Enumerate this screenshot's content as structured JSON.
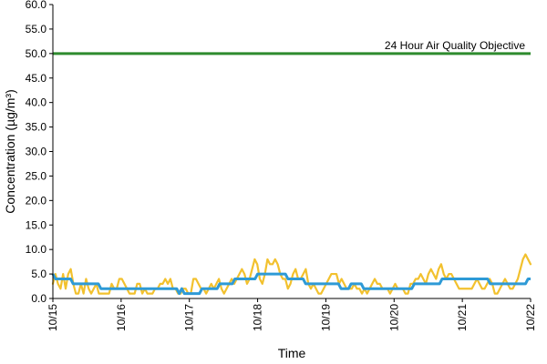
{
  "chart_data": {
    "type": "line",
    "xlabel": "Time",
    "ylabel": "Concentration (µg/m³)",
    "x_tick_labels": [
      "10/15",
      "10/16",
      "10/17",
      "10/18",
      "10/19",
      "10/20",
      "10/21",
      "10/22"
    ],
    "y_tick_labels": [
      "0.0",
      "5.0",
      "10.0",
      "15.0",
      "20.0",
      "25.0",
      "30.0",
      "35.0",
      "40.0",
      "45.0",
      "50.0",
      "55.0",
      "60.0"
    ],
    "ylim": [
      0,
      60
    ],
    "grid": false,
    "annotation": "24 Hour Air Quality Objective",
    "objective_value": 50,
    "colors": {
      "objective": "#2e8b2e",
      "yellow_series": "#f2c12e",
      "blue_series": "#2e9ad6",
      "axis": "#000000"
    },
    "series": [
      {
        "values": [
          3,
          5,
          3,
          2,
          5,
          2,
          5,
          6,
          3,
          1,
          1,
          3,
          1,
          4,
          2,
          1,
          2,
          3,
          1,
          1,
          1,
          1,
          1,
          3,
          2,
          2,
          4,
          4,
          3,
          2,
          1,
          1,
          1,
          3,
          3,
          1,
          2,
          1,
          1,
          1,
          2,
          2,
          3,
          3,
          4,
          3,
          4,
          2,
          2,
          1,
          1,
          2,
          2,
          1,
          1,
          4,
          4,
          3,
          2,
          2,
          1,
          2,
          3,
          2,
          3,
          4,
          2,
          1,
          2,
          3,
          4,
          3,
          4,
          5,
          6,
          5,
          3,
          4,
          6,
          8,
          7,
          4,
          3,
          5,
          8,
          7,
          7,
          8,
          7,
          5,
          4,
          4,
          2,
          3,
          5,
          6,
          4,
          4,
          5,
          6,
          3,
          2,
          3,
          2,
          1,
          1,
          2,
          3,
          4,
          5,
          5,
          5,
          3,
          4,
          3,
          2,
          2,
          2,
          3,
          2,
          2,
          1,
          2,
          1,
          2,
          3,
          4,
          3,
          3,
          2,
          2,
          2,
          1,
          2,
          3,
          2,
          2,
          2,
          1,
          1,
          3,
          3,
          4,
          4,
          5,
          4,
          3,
          5,
          6,
          5,
          4,
          6,
          7,
          5,
          4,
          5,
          5,
          4,
          3,
          2,
          2,
          2,
          2,
          2,
          2,
          3,
          4,
          3,
          2,
          2,
          3,
          4,
          3,
          1,
          1,
          2,
          3,
          4,
          3,
          2,
          2,
          3,
          4,
          6,
          8,
          9,
          8,
          7
        ]
      },
      {
        "values": [
          5,
          4,
          4,
          4,
          4,
          4,
          4,
          4,
          3,
          3,
          3,
          3,
          3,
          3,
          3,
          3,
          3,
          3,
          3,
          2,
          2,
          2,
          2,
          2,
          2,
          2,
          2,
          2,
          2,
          2,
          2,
          2,
          2,
          2,
          2,
          2,
          2,
          2,
          2,
          2,
          2,
          2,
          2,
          2,
          2,
          2,
          2,
          2,
          2,
          2,
          1,
          2,
          1,
          1,
          1,
          1,
          1,
          1,
          1,
          2,
          2,
          2,
          2,
          2,
          2,
          2,
          3,
          3,
          3,
          3,
          3,
          3,
          4,
          4,
          4,
          4,
          4,
          4,
          4,
          4,
          4,
          5,
          5,
          5,
          5,
          5,
          5,
          5,
          5,
          5,
          5,
          5,
          5,
          4,
          4,
          4,
          4,
          4,
          4,
          4,
          3,
          3,
          3,
          3,
          3,
          3,
          3,
          3,
          3,
          3,
          3,
          3,
          3,
          3,
          2,
          2,
          2,
          2,
          3,
          3,
          3,
          3,
          3,
          2,
          2,
          2,
          2,
          2,
          2,
          2,
          2,
          2,
          2,
          2,
          2,
          2,
          2,
          2,
          2,
          2,
          2,
          2,
          2,
          3,
          3,
          3,
          3,
          3,
          3,
          3,
          3,
          3,
          3,
          3,
          4,
          4,
          4,
          4,
          4,
          4,
          4,
          4,
          4,
          4,
          4,
          4,
          4,
          4,
          4,
          4,
          4,
          4,
          4,
          3,
          3,
          3,
          3,
          3,
          3,
          3,
          3,
          3,
          3,
          3,
          3,
          3,
          3,
          3,
          4,
          4
        ]
      }
    ]
  }
}
